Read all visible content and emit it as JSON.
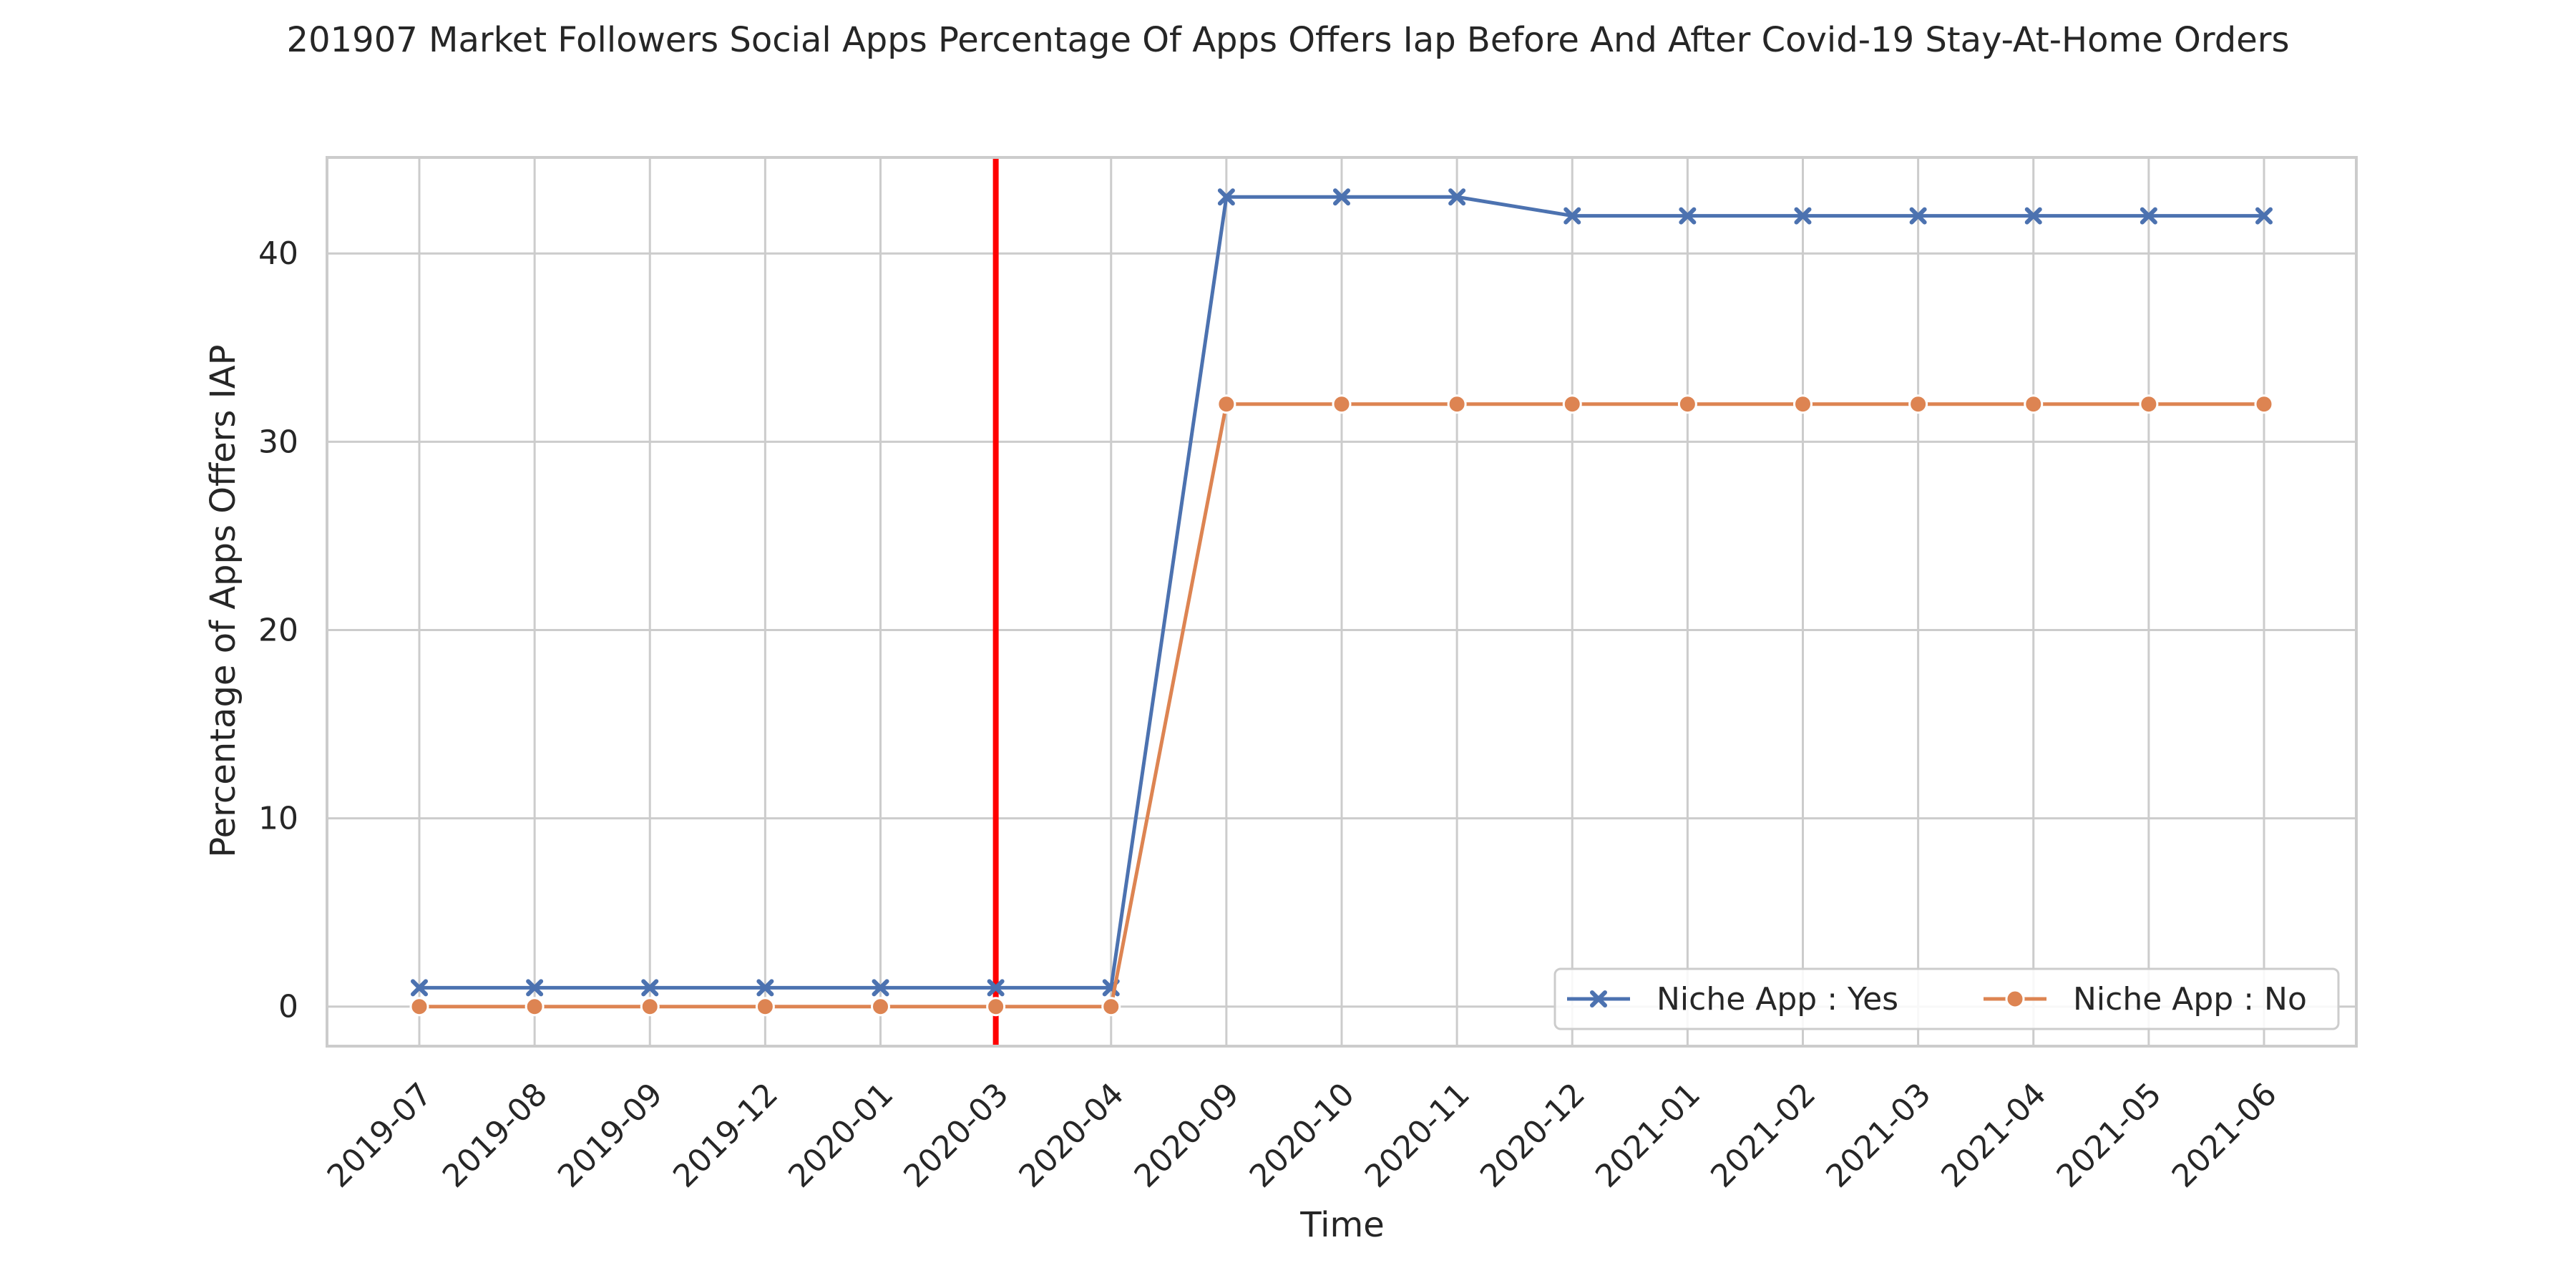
{
  "chart_data": {
    "type": "line",
    "title": "201907 Market Followers Social Apps Percentage Of Apps Offers Iap Before And After Covid-19 Stay-At-Home Orders",
    "xlabel": "Time",
    "ylabel": "Percentage of Apps Offers IAP",
    "categories": [
      "2019-07",
      "2019-08",
      "2019-09",
      "2019-12",
      "2020-01",
      "2020-03",
      "2020-04",
      "2020-09",
      "2020-10",
      "2020-11",
      "2020-12",
      "2021-01",
      "2021-02",
      "2021-03",
      "2021-04",
      "2021-05",
      "2021-06"
    ],
    "ylim": [
      -2.1,
      45.1
    ],
    "yticks": [
      0,
      10,
      20,
      30,
      40
    ],
    "grid": true,
    "legend_position": "lower-right",
    "reference_line": {
      "x": "2020-03",
      "color": "#ff0000"
    },
    "series": [
      {
        "name": "Niche App : Yes",
        "color": "#4c72b0",
        "marker": "x",
        "values": [
          1,
          1,
          1,
          1,
          1,
          1,
          1,
          43,
          43,
          43,
          42,
          42,
          42,
          42,
          42,
          42,
          42
        ]
      },
      {
        "name": "Niche App : No",
        "color": "#dd8452",
        "marker": "circle",
        "values": [
          0,
          0,
          0,
          0,
          0,
          0,
          0,
          32,
          32,
          32,
          32,
          32,
          32,
          32,
          32,
          32,
          32
        ]
      }
    ]
  }
}
